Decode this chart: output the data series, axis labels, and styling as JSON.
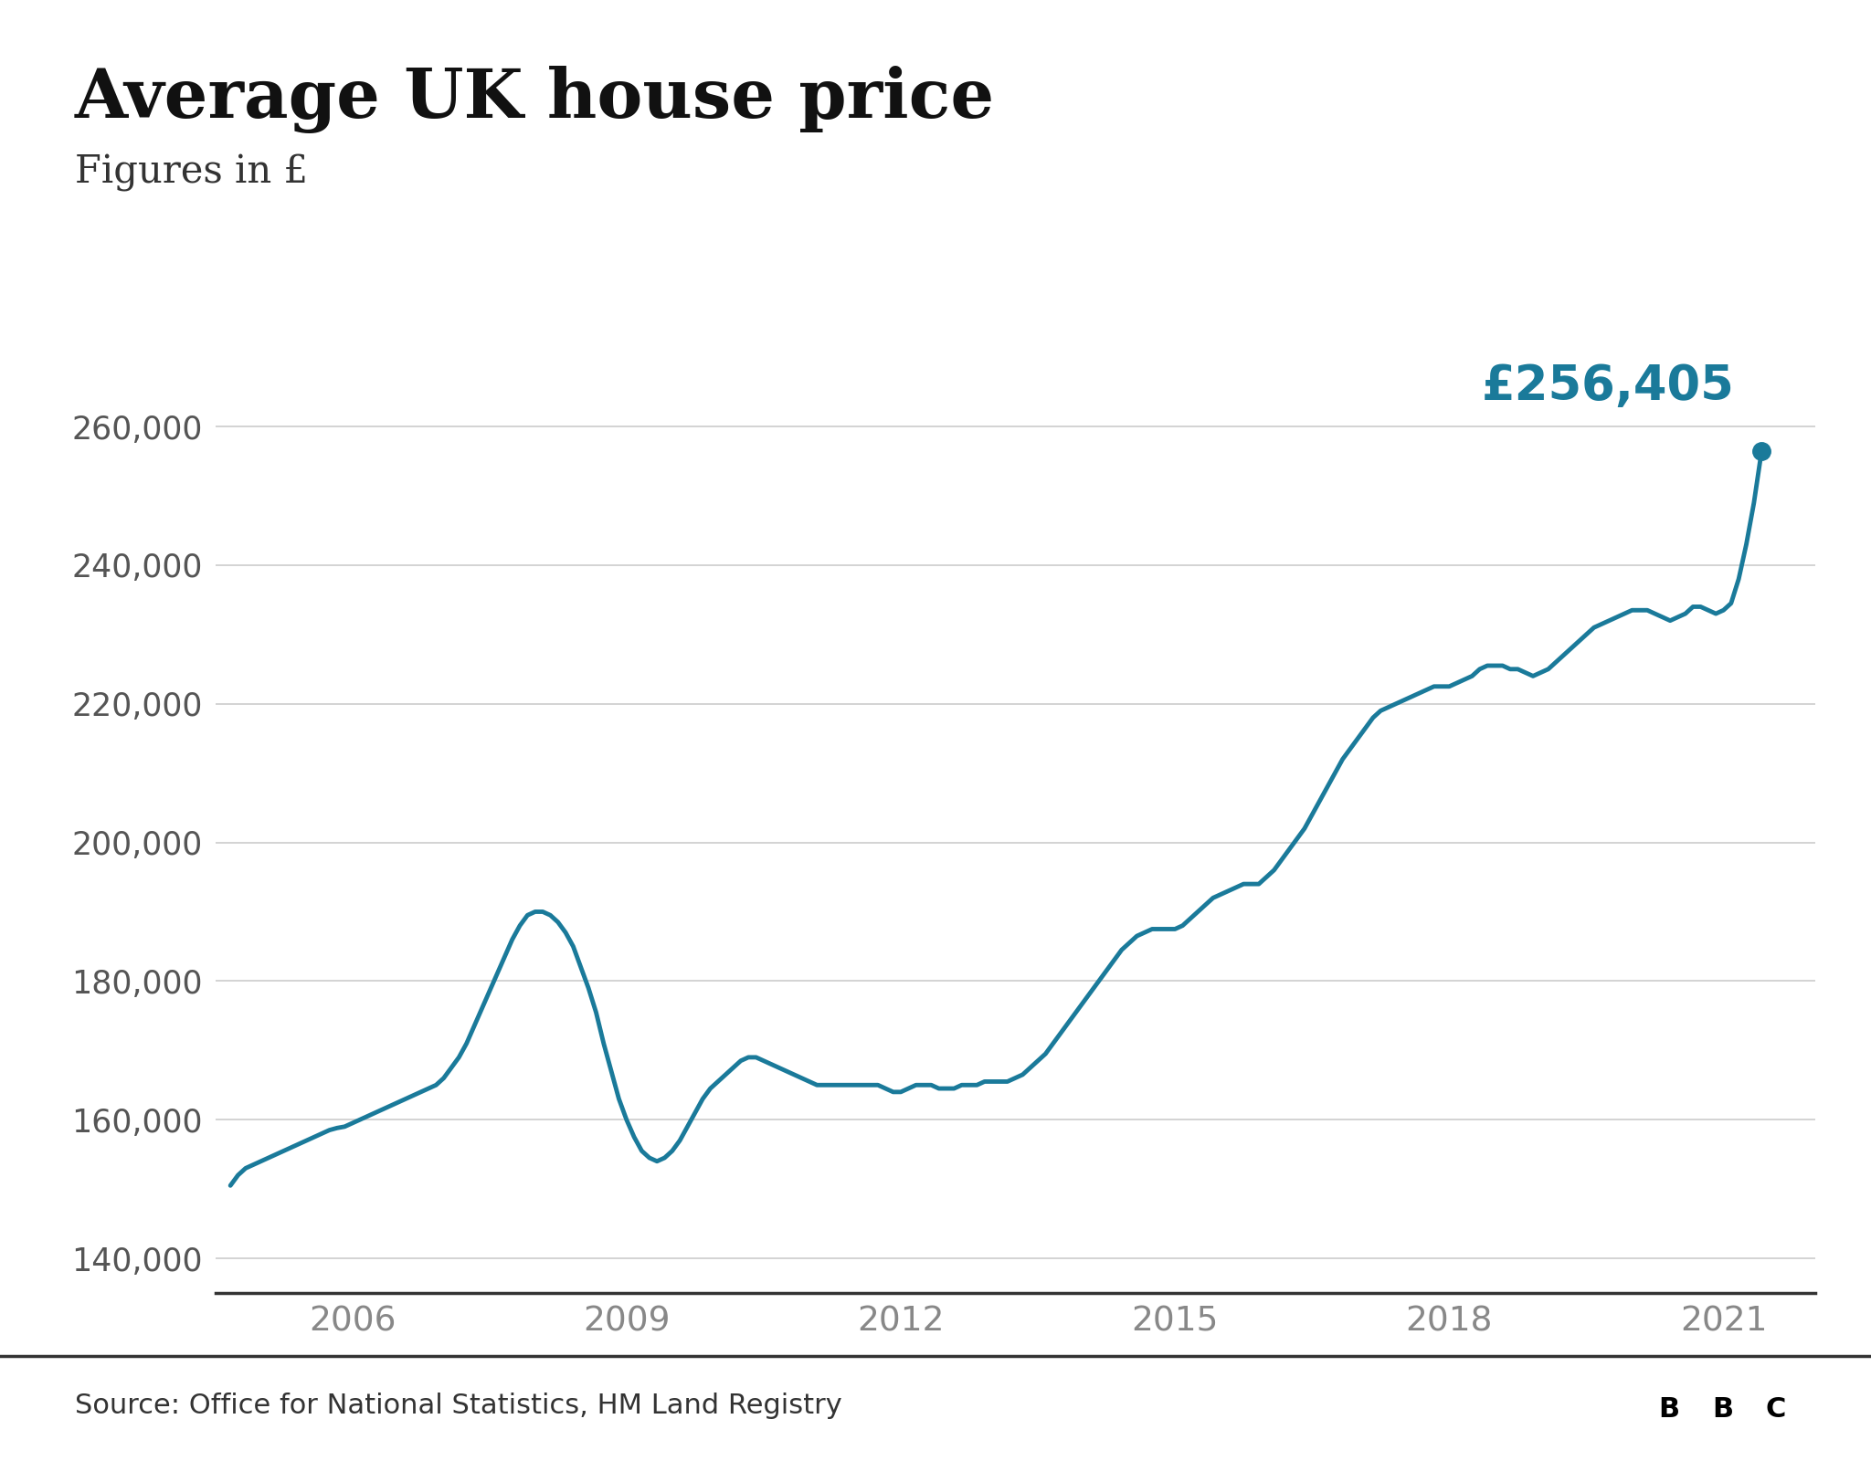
{
  "title": "Average UK house price",
  "subtitle": "Figures in £",
  "source": "Source: Office for National Statistics, HM Land Registry",
  "line_color": "#1a7a9a",
  "annotation_color": "#1a7a9a",
  "annotation_text": "£256,405",
  "background_color": "#ffffff",
  "yticks": [
    140000,
    160000,
    180000,
    200000,
    220000,
    240000,
    260000
  ],
  "ytick_labels": [
    "140,000",
    "160,000",
    "180,000",
    "200,000",
    "220,000",
    "240,000",
    "260,000"
  ],
  "xticks": [
    2006,
    2009,
    2012,
    2015,
    2018,
    2021
  ],
  "ylim": [
    135000,
    272000
  ],
  "xlim_start": 2004.5,
  "xlim_end": 2022.0,
  "data": {
    "2004-09": 150500,
    "2004-10": 152000,
    "2004-11": 153000,
    "2004-12": 153500,
    "2005-01": 154000,
    "2005-02": 154500,
    "2005-03": 155000,
    "2005-04": 155500,
    "2005-05": 156000,
    "2005-06": 156500,
    "2005-07": 157000,
    "2005-08": 157500,
    "2005-09": 158000,
    "2005-10": 158500,
    "2005-11": 158800,
    "2005-12": 159000,
    "2006-01": 159500,
    "2006-02": 160000,
    "2006-03": 160500,
    "2006-04": 161000,
    "2006-05": 161500,
    "2006-06": 162000,
    "2006-07": 162500,
    "2006-08": 163000,
    "2006-09": 163500,
    "2006-10": 164000,
    "2006-11": 164500,
    "2006-12": 165000,
    "2007-01": 166000,
    "2007-02": 167500,
    "2007-03": 169000,
    "2007-04": 171000,
    "2007-05": 173500,
    "2007-06": 176000,
    "2007-07": 178500,
    "2007-08": 181000,
    "2007-09": 183500,
    "2007-10": 186000,
    "2007-11": 188000,
    "2007-12": 189500,
    "2008-01": 190000,
    "2008-02": 190000,
    "2008-03": 189500,
    "2008-04": 188500,
    "2008-05": 187000,
    "2008-06": 185000,
    "2008-07": 182000,
    "2008-08": 179000,
    "2008-09": 175500,
    "2008-10": 171000,
    "2008-11": 167000,
    "2008-12": 163000,
    "2009-01": 160000,
    "2009-02": 157500,
    "2009-03": 155500,
    "2009-04": 154500,
    "2009-05": 154000,
    "2009-06": 154500,
    "2009-07": 155500,
    "2009-08": 157000,
    "2009-09": 159000,
    "2009-10": 161000,
    "2009-11": 163000,
    "2009-12": 164500,
    "2010-01": 165500,
    "2010-02": 166500,
    "2010-03": 167500,
    "2010-04": 168500,
    "2010-05": 169000,
    "2010-06": 169000,
    "2010-07": 168500,
    "2010-08": 168000,
    "2010-09": 167500,
    "2010-10": 167000,
    "2010-11": 166500,
    "2010-12": 166000,
    "2011-01": 165500,
    "2011-02": 165000,
    "2011-03": 165000,
    "2011-04": 165000,
    "2011-05": 165000,
    "2011-06": 165000,
    "2011-07": 165000,
    "2011-08": 165000,
    "2011-09": 165000,
    "2011-10": 165000,
    "2011-11": 164500,
    "2011-12": 164000,
    "2012-01": 164000,
    "2012-02": 164500,
    "2012-03": 165000,
    "2012-04": 165000,
    "2012-05": 165000,
    "2012-06": 164500,
    "2012-07": 164500,
    "2012-08": 164500,
    "2012-09": 165000,
    "2012-10": 165000,
    "2012-11": 165000,
    "2012-12": 165500,
    "2013-01": 165500,
    "2013-02": 165500,
    "2013-03": 165500,
    "2013-04": 166000,
    "2013-05": 166500,
    "2013-06": 167500,
    "2013-07": 168500,
    "2013-08": 169500,
    "2013-09": 171000,
    "2013-10": 172500,
    "2013-11": 174000,
    "2013-12": 175500,
    "2014-01": 177000,
    "2014-02": 178500,
    "2014-03": 180000,
    "2014-04": 181500,
    "2014-05": 183000,
    "2014-06": 184500,
    "2014-07": 185500,
    "2014-08": 186500,
    "2014-09": 187000,
    "2014-10": 187500,
    "2014-11": 187500,
    "2014-12": 187500,
    "2015-01": 187500,
    "2015-02": 188000,
    "2015-03": 189000,
    "2015-04": 190000,
    "2015-05": 191000,
    "2015-06": 192000,
    "2015-07": 192500,
    "2015-08": 193000,
    "2015-09": 193500,
    "2015-10": 194000,
    "2015-11": 194000,
    "2015-12": 194000,
    "2016-01": 195000,
    "2016-02": 196000,
    "2016-03": 197500,
    "2016-04": 199000,
    "2016-05": 200500,
    "2016-06": 202000,
    "2016-07": 204000,
    "2016-08": 206000,
    "2016-09": 208000,
    "2016-10": 210000,
    "2016-11": 212000,
    "2016-12": 213500,
    "2017-01": 215000,
    "2017-02": 216500,
    "2017-03": 218000,
    "2017-04": 219000,
    "2017-05": 219500,
    "2017-06": 220000,
    "2017-07": 220500,
    "2017-08": 221000,
    "2017-09": 221500,
    "2017-10": 222000,
    "2017-11": 222500,
    "2017-12": 222500,
    "2018-01": 222500,
    "2018-02": 223000,
    "2018-03": 223500,
    "2018-04": 224000,
    "2018-05": 225000,
    "2018-06": 225500,
    "2018-07": 225500,
    "2018-08": 225500,
    "2018-09": 225000,
    "2018-10": 225000,
    "2018-11": 224500,
    "2018-12": 224000,
    "2019-01": 224500,
    "2019-02": 225000,
    "2019-03": 226000,
    "2019-04": 227000,
    "2019-05": 228000,
    "2019-06": 229000,
    "2019-07": 230000,
    "2019-08": 231000,
    "2019-09": 231500,
    "2019-10": 232000,
    "2019-11": 232500,
    "2019-12": 233000,
    "2020-01": 233500,
    "2020-02": 233500,
    "2020-03": 233500,
    "2020-04": 233000,
    "2020-05": 232500,
    "2020-06": 232000,
    "2020-07": 232500,
    "2020-08": 233000,
    "2020-09": 234000,
    "2020-10": 234000,
    "2020-11": 233500,
    "2020-12": 233000,
    "2021-01": 233500,
    "2021-02": 234500,
    "2021-03": 238000,
    "2021-04": 243000,
    "2021-05": 249000,
    "2021-06": 256405
  }
}
